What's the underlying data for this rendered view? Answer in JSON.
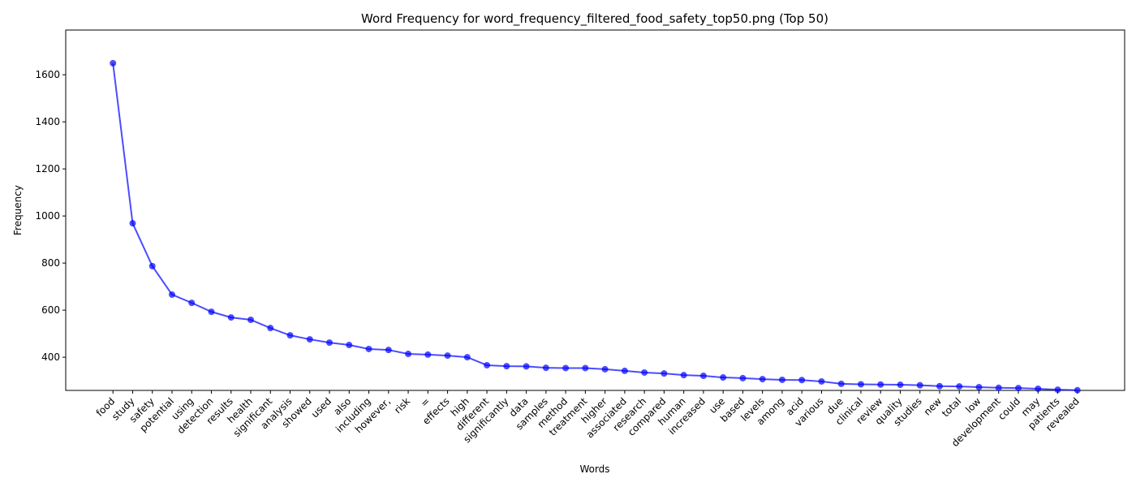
{
  "chart_data": {
    "type": "line",
    "title": "Word Frequency for word_frequency_filtered_food_safety_top50.png (Top 50)",
    "x_label": "Words",
    "y_label": "Frequency",
    "categories": [
      "food",
      "study",
      "safety",
      "potential",
      "using",
      "detection",
      "results",
      "health",
      "significant",
      "analysis",
      "showed",
      "used",
      "also",
      "including",
      "however,",
      "risk",
      "=",
      "effects",
      "high",
      "different",
      "significantly",
      "data",
      "samples",
      "method",
      "treatment",
      "higher",
      "associated",
      "research",
      "compared",
      "human",
      "increased",
      "use",
      "based",
      "levels",
      "among",
      "acid",
      "various",
      "due",
      "clinical",
      "review",
      "quality",
      "studies",
      "new",
      "total",
      "low",
      "development",
      "could",
      "may",
      "patients",
      "revealed"
    ],
    "series": [
      {
        "name": "Frequency",
        "color": "#0000ff",
        "values": [
          1649,
          969,
          787,
          666,
          631,
          593,
          569,
          559,
          524,
          493,
          476,
          462,
          452,
          435,
          431,
          414,
          411,
          407,
          400,
          366,
          362,
          361,
          355,
          354,
          354,
          349,
          342,
          335,
          331,
          324,
          321,
          314,
          311,
          307,
          304,
          303,
          297,
          287,
          285,
          284,
          283,
          281,
          277,
          276,
          273,
          270,
          269,
          266,
          262,
          260
        ]
      }
    ],
    "ylim": [
      259,
      1790
    ],
    "yticks": [
      400,
      600,
      800,
      1000,
      1200,
      1400,
      1600
    ],
    "grid": false
  }
}
